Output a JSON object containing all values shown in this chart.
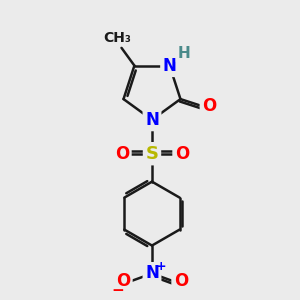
{
  "bg_color": "#ebebeb",
  "bond_color": "#1a1a1a",
  "bond_width": 1.8,
  "atom_colors": {
    "N": "#0000ff",
    "O": "#ff0000",
    "S": "#b8b800",
    "C": "#1a1a1a",
    "H": "#4a8a8a"
  },
  "fs_main": 12,
  "fs_small": 10
}
